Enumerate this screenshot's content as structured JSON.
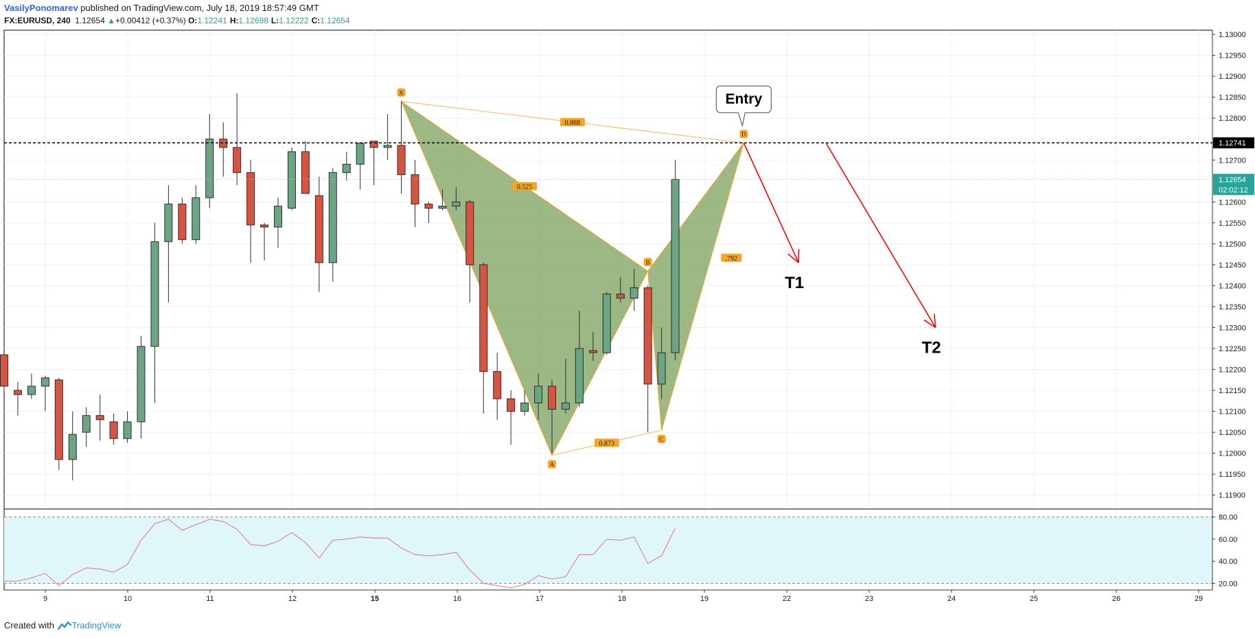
{
  "header": {
    "author": "VasilyPonomarev",
    "published": "published on TradingView.com, July 18, 2019 18:57:49 GMT",
    "symbol": "FX:EURUSD, 240",
    "last": "1.12654",
    "change_arrow": "▲",
    "change": "+0.00412 (+0.37%)",
    "ohlc": [
      {
        "label": "O:",
        "value": "1.12241"
      },
      {
        "label": "H:",
        "value": "1.12698"
      },
      {
        "label": "L:",
        "value": "1.12222"
      },
      {
        "label": "C:",
        "value": "1.12654"
      }
    ]
  },
  "footer": {
    "created_with": "Created with",
    "brand": "TradingView",
    "logo_icon": "tradingview-logo-icon"
  },
  "colors": {
    "up": "#26a69a",
    "candle_up_fill": "#6ba583",
    "candle_down_fill": "#d75442",
    "pattern_fill": "#7aa05c",
    "pattern_stroke": "#f5a623",
    "target_arrow": "#ff0000",
    "rsi_band": "#e0f7fa",
    "rsi_line": "#e06aa8"
  },
  "chart_data": [
    {
      "type": "candlestick",
      "symbol": "FX:EURUSD",
      "timeframe": "240",
      "x_tick_labels": [
        "9",
        "10",
        "11",
        "12",
        "15",
        "16",
        "17",
        "18",
        "19",
        "22",
        "23",
        "24",
        "25",
        "26",
        "29"
      ],
      "y_tick_labels": [
        "1.13000",
        "1.12950",
        "1.12900",
        "1.12850",
        "1.12800",
        "1.12700",
        "1.12600",
        "1.12550",
        "1.12500",
        "1.12450",
        "1.12400",
        "1.12350",
        "1.12300",
        "1.12250",
        "1.12200",
        "1.12150",
        "1.12100",
        "1.12050",
        "1.12000",
        "1.11950",
        "1.11900"
      ],
      "ylim": [
        1.1187,
        1.1301
      ],
      "grid": true,
      "candles": [
        {
          "o": 1.12235,
          "h": 1.12235,
          "l": 1.1215,
          "c": 1.1216
        },
        {
          "o": 1.1215,
          "h": 1.1217,
          "l": 1.1209,
          "c": 1.1214
        },
        {
          "o": 1.1214,
          "h": 1.1219,
          "l": 1.1213,
          "c": 1.1216
        },
        {
          "o": 1.1216,
          "h": 1.12185,
          "l": 1.121,
          "c": 1.1218
        },
        {
          "o": 1.12175,
          "h": 1.1218,
          "l": 1.1196,
          "c": 1.11985
        },
        {
          "o": 1.11985,
          "h": 1.121,
          "l": 1.11935,
          "c": 1.12045
        },
        {
          "o": 1.1205,
          "h": 1.1211,
          "l": 1.12015,
          "c": 1.1209
        },
        {
          "o": 1.1209,
          "h": 1.1214,
          "l": 1.1203,
          "c": 1.1208
        },
        {
          "o": 1.12075,
          "h": 1.12095,
          "l": 1.1202,
          "c": 1.12035
        },
        {
          "o": 1.12035,
          "h": 1.121,
          "l": 1.12025,
          "c": 1.12075
        },
        {
          "o": 1.12075,
          "h": 1.1228,
          "l": 1.12035,
          "c": 1.12255
        },
        {
          "o": 1.12255,
          "h": 1.1255,
          "l": 1.1212,
          "c": 1.12505
        },
        {
          "o": 1.12505,
          "h": 1.1264,
          "l": 1.1236,
          "c": 1.12595
        },
        {
          "o": 1.12595,
          "h": 1.1261,
          "l": 1.125,
          "c": 1.1251
        },
        {
          "o": 1.1251,
          "h": 1.1264,
          "l": 1.125,
          "c": 1.1261
        },
        {
          "o": 1.1261,
          "h": 1.1281,
          "l": 1.12585,
          "c": 1.1275
        },
        {
          "o": 1.1275,
          "h": 1.1279,
          "l": 1.1266,
          "c": 1.1273
        },
        {
          "o": 1.1273,
          "h": 1.1286,
          "l": 1.1264,
          "c": 1.1267
        },
        {
          "o": 1.1267,
          "h": 1.127,
          "l": 1.12455,
          "c": 1.12545
        },
        {
          "o": 1.12545,
          "h": 1.1255,
          "l": 1.1246,
          "c": 1.1254
        },
        {
          "o": 1.1254,
          "h": 1.1261,
          "l": 1.1249,
          "c": 1.1259
        },
        {
          "o": 1.12585,
          "h": 1.1273,
          "l": 1.1258,
          "c": 1.1272
        },
        {
          "o": 1.1272,
          "h": 1.12745,
          "l": 1.1262,
          "c": 1.1262
        },
        {
          "o": 1.12615,
          "h": 1.1266,
          "l": 1.12385,
          "c": 1.12455
        },
        {
          "o": 1.12455,
          "h": 1.1268,
          "l": 1.1241,
          "c": 1.1267
        },
        {
          "o": 1.1267,
          "h": 1.1272,
          "l": 1.1265,
          "c": 1.1269
        },
        {
          "o": 1.1269,
          "h": 1.1274,
          "l": 1.1263,
          "c": 1.1274
        },
        {
          "o": 1.12745,
          "h": 1.12745,
          "l": 1.1264,
          "c": 1.1273
        },
        {
          "o": 1.1273,
          "h": 1.1281,
          "l": 1.127,
          "c": 1.12735
        },
        {
          "o": 1.12735,
          "h": 1.1284,
          "l": 1.1262,
          "c": 1.12665
        },
        {
          "o": 1.12665,
          "h": 1.127,
          "l": 1.1254,
          "c": 1.12595
        },
        {
          "o": 1.12595,
          "h": 1.126,
          "l": 1.1255,
          "c": 1.12585
        },
        {
          "o": 1.12585,
          "h": 1.1263,
          "l": 1.1258,
          "c": 1.1259
        },
        {
          "o": 1.1259,
          "h": 1.12635,
          "l": 1.1258,
          "c": 1.126
        },
        {
          "o": 1.126,
          "h": 1.12605,
          "l": 1.1236,
          "c": 1.1245
        },
        {
          "o": 1.1245,
          "h": 1.12455,
          "l": 1.12095,
          "c": 1.12195
        },
        {
          "o": 1.12195,
          "h": 1.1224,
          "l": 1.1208,
          "c": 1.1213
        },
        {
          "o": 1.1213,
          "h": 1.1215,
          "l": 1.1202,
          "c": 1.121
        },
        {
          "o": 1.121,
          "h": 1.1215,
          "l": 1.1209,
          "c": 1.1212
        },
        {
          "o": 1.1212,
          "h": 1.1219,
          "l": 1.1208,
          "c": 1.1216
        },
        {
          "o": 1.1216,
          "h": 1.12175,
          "l": 1.12,
          "c": 1.12105
        },
        {
          "o": 1.12105,
          "h": 1.12225,
          "l": 1.12095,
          "c": 1.1212
        },
        {
          "o": 1.1212,
          "h": 1.1234,
          "l": 1.1211,
          "c": 1.1225
        },
        {
          "o": 1.12245,
          "h": 1.1229,
          "l": 1.1222,
          "c": 1.1224
        },
        {
          "o": 1.1224,
          "h": 1.12385,
          "l": 1.12235,
          "c": 1.1238
        },
        {
          "o": 1.1238,
          "h": 1.1242,
          "l": 1.1236,
          "c": 1.1237
        },
        {
          "o": 1.1237,
          "h": 1.1244,
          "l": 1.1234,
          "c": 1.12395
        },
        {
          "o": 1.12395,
          "h": 1.124,
          "l": 1.1205,
          "c": 1.12165
        },
        {
          "o": 1.12165,
          "h": 1.123,
          "l": 1.1213,
          "c": 1.1224
        },
        {
          "o": 1.1224,
          "h": 1.127,
          "l": 1.12222,
          "c": 1.12654
        }
      ],
      "horizontal_line": {
        "value": 1.12741,
        "label": "1.12741",
        "style": "dashed"
      },
      "last_price": {
        "value": 1.12654,
        "label": "1.12654",
        "countdown": "02:02:12"
      },
      "harmonic_pattern": {
        "points": [
          {
            "label": "X",
            "x_index": 29,
            "y": 1.1284
          },
          {
            "label": "A",
            "x_index": 40,
            "y": 1.11995
          },
          {
            "label": "B",
            "x_index": 47,
            "y": 1.12435
          },
          {
            "label": "C",
            "x_index": 48,
            "y": 1.12055
          },
          {
            "label": "D",
            "x_index": 54,
            "y": 1.12741
          }
        ],
        "ratios": [
          "0.525",
          "0.873",
          "0.888",
          ".792"
        ]
      },
      "annotations": [
        {
          "text": "Entry",
          "x_index": 54,
          "y": 1.12741
        },
        {
          "text": "T1",
          "from": {
            "x_index": 54,
            "y": 1.12741
          },
          "to": {
            "x_index": 58,
            "y": 1.12455
          }
        },
        {
          "text": "T2",
          "from": {
            "x_index": 60,
            "y": 1.12741
          },
          "to": {
            "x_index": 68,
            "y": 1.123
          }
        }
      ]
    },
    {
      "type": "line",
      "indicator": "RSI",
      "y_tick_labels": [
        "80.00",
        "60.00",
        "40.00",
        "20.00"
      ],
      "ylim": [
        14,
        86
      ],
      "band": [
        20,
        80
      ],
      "values": [
        22,
        22,
        25,
        29,
        18,
        28,
        34,
        33,
        30,
        37,
        59,
        74,
        78,
        68,
        73,
        78,
        76,
        69,
        55,
        54,
        58,
        66,
        57,
        43,
        59,
        60,
        62,
        61,
        61,
        52,
        46,
        45,
        46,
        48,
        32,
        20,
        18,
        16,
        19,
        27,
        24,
        26,
        46,
        46,
        60,
        59,
        62,
        38,
        45,
        70
      ]
    }
  ]
}
